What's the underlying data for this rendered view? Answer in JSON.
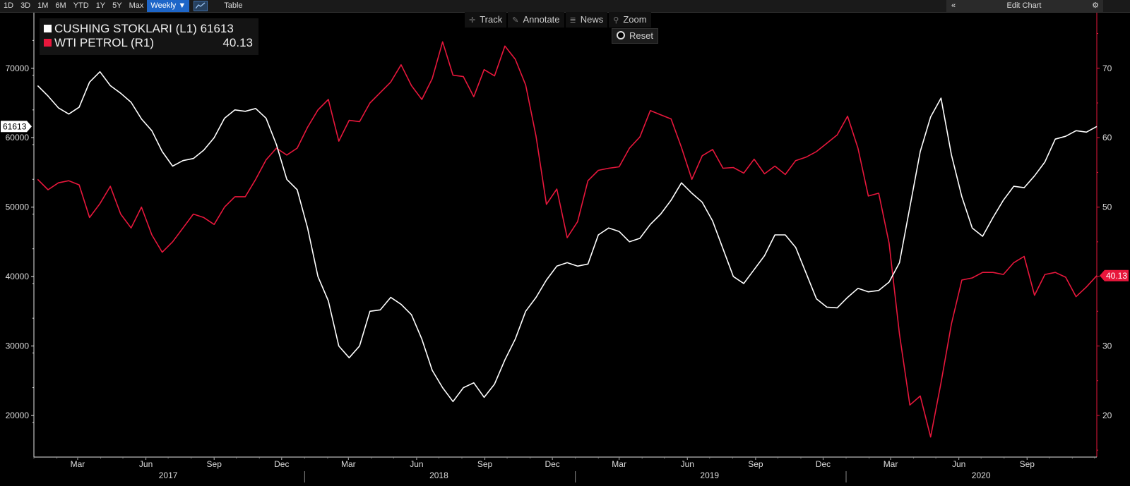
{
  "toolbar": {
    "ranges": [
      "1D",
      "3D",
      "1M",
      "6M",
      "YTD",
      "1Y",
      "5Y",
      "Max"
    ],
    "frequency": "Weekly ▼",
    "table_label": "Table",
    "collapse_glyph": "«",
    "edit_chart": "Edit Chart",
    "settings_glyph": "⚙"
  },
  "tools": {
    "track": "Track",
    "annotate": "Annotate",
    "news": "News",
    "zoom": "Zoom",
    "reset": "Reset"
  },
  "legend": {
    "series1_label": "CUSHING STOKLARI (L1) 61613",
    "series2_label": "WTI PETROL (R1)",
    "series2_value": "40.13"
  },
  "colors": {
    "series1": "#ffffff",
    "series2": "#e8173c",
    "background": "#000000"
  },
  "chart_data": {
    "type": "line",
    "x_range": [
      "2017-01-01",
      "2020-12-04"
    ],
    "left_axis": {
      "ylim": [
        14000,
        78000
      ],
      "ticks": [
        20000,
        30000,
        40000,
        50000,
        60000,
        70000
      ]
    },
    "right_axis": {
      "ylim": [
        14,
        78
      ],
      "ticks": [
        20,
        30,
        40,
        50,
        60,
        70
      ]
    },
    "month_ticks": [
      {
        "label": "Mar",
        "date": "2017-03-01"
      },
      {
        "label": "Jun",
        "date": "2017-06-01"
      },
      {
        "label": "Sep",
        "date": "2017-09-01"
      },
      {
        "label": "Dec",
        "date": "2017-12-01"
      },
      {
        "label": "Mar",
        "date": "2018-03-01"
      },
      {
        "label": "Jun",
        "date": "2018-06-01"
      },
      {
        "label": "Sep",
        "date": "2018-09-01"
      },
      {
        "label": "Dec",
        "date": "2018-12-01"
      },
      {
        "label": "Mar",
        "date": "2019-03-01"
      },
      {
        "label": "Jun",
        "date": "2019-06-01"
      },
      {
        "label": "Sep",
        "date": "2019-09-01"
      },
      {
        "label": "Dec",
        "date": "2019-12-01"
      },
      {
        "label": "Mar",
        "date": "2020-03-01"
      },
      {
        "label": "Jun",
        "date": "2020-06-01"
      },
      {
        "label": "Sep",
        "date": "2020-09-01"
      }
    ],
    "year_ticks": [
      {
        "label": "2017",
        "date": "2017-07-01"
      },
      {
        "label": "2018",
        "date": "2018-07-01"
      },
      {
        "label": "2019",
        "date": "2019-07-01"
      },
      {
        "label": "2020",
        "date": "2020-07-01"
      }
    ],
    "year_separators": [
      "2018-01-01",
      "2019-01-01",
      "2020-01-01"
    ],
    "last_value_tags": {
      "left": "61613",
      "right": "40.13"
    },
    "series": [
      {
        "name": "CUSHING STOKLARI (L1)",
        "axis": "left",
        "points": [
          [
            "2017-01-06",
            67500
          ],
          [
            "2017-01-20",
            66000
          ],
          [
            "2017-02-03",
            64300
          ],
          [
            "2017-02-17",
            63400
          ],
          [
            "2017-03-03",
            64400
          ],
          [
            "2017-03-17",
            68000
          ],
          [
            "2017-03-31",
            69500
          ],
          [
            "2017-04-14",
            67500
          ],
          [
            "2017-04-28",
            66400
          ],
          [
            "2017-05-12",
            65100
          ],
          [
            "2017-05-26",
            62700
          ],
          [
            "2017-06-09",
            61000
          ],
          [
            "2017-06-23",
            58000
          ],
          [
            "2017-07-07",
            55900
          ],
          [
            "2017-07-21",
            56700
          ],
          [
            "2017-08-04",
            57000
          ],
          [
            "2017-08-18",
            58200
          ],
          [
            "2017-09-01",
            60000
          ],
          [
            "2017-09-15",
            62800
          ],
          [
            "2017-09-29",
            64000
          ],
          [
            "2017-10-13",
            63800
          ],
          [
            "2017-10-27",
            64200
          ],
          [
            "2017-11-10",
            62800
          ],
          [
            "2017-11-24",
            59000
          ],
          [
            "2017-12-08",
            54000
          ],
          [
            "2017-12-22",
            52500
          ],
          [
            "2018-01-05",
            47000
          ],
          [
            "2018-01-19",
            40000
          ],
          [
            "2018-02-02",
            36500
          ],
          [
            "2018-02-16",
            30000
          ],
          [
            "2018-03-02",
            28300
          ],
          [
            "2018-03-16",
            30000
          ],
          [
            "2018-03-30",
            35000
          ],
          [
            "2018-04-13",
            35200
          ],
          [
            "2018-04-27",
            37000
          ],
          [
            "2018-05-11",
            36000
          ],
          [
            "2018-05-25",
            34500
          ],
          [
            "2018-06-08",
            31000
          ],
          [
            "2018-06-22",
            26500
          ],
          [
            "2018-07-06",
            24000
          ],
          [
            "2018-07-20",
            22000
          ],
          [
            "2018-08-03",
            24000
          ],
          [
            "2018-08-17",
            24700
          ],
          [
            "2018-08-31",
            22600
          ],
          [
            "2018-09-14",
            24500
          ],
          [
            "2018-09-28",
            28000
          ],
          [
            "2018-10-12",
            31000
          ],
          [
            "2018-10-26",
            35000
          ],
          [
            "2018-11-09",
            37000
          ],
          [
            "2018-11-23",
            39500
          ],
          [
            "2018-12-07",
            41500
          ],
          [
            "2018-12-21",
            42000
          ],
          [
            "2019-01-04",
            41500
          ],
          [
            "2019-01-18",
            41800
          ],
          [
            "2019-02-01",
            46000
          ],
          [
            "2019-02-15",
            47000
          ],
          [
            "2019-03-01",
            46500
          ],
          [
            "2019-03-15",
            45000
          ],
          [
            "2019-03-29",
            45500
          ],
          [
            "2019-04-12",
            47500
          ],
          [
            "2019-04-26",
            49000
          ],
          [
            "2019-05-10",
            51000
          ],
          [
            "2019-05-24",
            53500
          ],
          [
            "2019-06-07",
            52000
          ],
          [
            "2019-06-21",
            50700
          ],
          [
            "2019-07-05",
            48000
          ],
          [
            "2019-07-19",
            44000
          ],
          [
            "2019-08-02",
            40000
          ],
          [
            "2019-08-16",
            39000
          ],
          [
            "2019-08-30",
            41000
          ],
          [
            "2019-09-13",
            43000
          ],
          [
            "2019-09-27",
            46000
          ],
          [
            "2019-10-11",
            46000
          ],
          [
            "2019-10-25",
            44200
          ],
          [
            "2019-11-08",
            40500
          ],
          [
            "2019-11-22",
            36800
          ],
          [
            "2019-12-06",
            35600
          ],
          [
            "2019-12-20",
            35500
          ],
          [
            "2020-01-03",
            37000
          ],
          [
            "2020-01-17",
            38300
          ],
          [
            "2020-01-31",
            37800
          ],
          [
            "2020-02-14",
            38000
          ],
          [
            "2020-02-28",
            39200
          ],
          [
            "2020-03-13",
            42000
          ],
          [
            "2020-03-27",
            50000
          ],
          [
            "2020-04-10",
            58000
          ],
          [
            "2020-04-24",
            63000
          ],
          [
            "2020-05-08",
            65700
          ],
          [
            "2020-05-22",
            57500
          ],
          [
            "2020-06-05",
            51500
          ],
          [
            "2020-06-19",
            47000
          ],
          [
            "2020-07-03",
            45800
          ],
          [
            "2020-07-17",
            48500
          ],
          [
            "2020-07-31",
            51000
          ],
          [
            "2020-08-14",
            53000
          ],
          [
            "2020-08-28",
            52800
          ],
          [
            "2020-09-11",
            54500
          ],
          [
            "2020-09-25",
            56500
          ],
          [
            "2020-10-09",
            59800
          ],
          [
            "2020-10-23",
            60200
          ],
          [
            "2020-11-06",
            61000
          ],
          [
            "2020-11-20",
            60800
          ],
          [
            "2020-12-04",
            61613
          ]
        ]
      },
      {
        "name": "WTI PETROL (R1)",
        "axis": "right",
        "points": [
          [
            "2017-01-06",
            54
          ],
          [
            "2017-01-20",
            52.5
          ],
          [
            "2017-02-03",
            53.5
          ],
          [
            "2017-02-17",
            53.8
          ],
          [
            "2017-03-03",
            53.2
          ],
          [
            "2017-03-17",
            48.5
          ],
          [
            "2017-03-31",
            50.5
          ],
          [
            "2017-04-14",
            53
          ],
          [
            "2017-04-28",
            49
          ],
          [
            "2017-05-12",
            47
          ],
          [
            "2017-05-26",
            50
          ],
          [
            "2017-06-09",
            46
          ],
          [
            "2017-06-23",
            43.5
          ],
          [
            "2017-07-07",
            45
          ],
          [
            "2017-07-21",
            47
          ],
          [
            "2017-08-04",
            49
          ],
          [
            "2017-08-18",
            48.5
          ],
          [
            "2017-09-01",
            47.5
          ],
          [
            "2017-09-15",
            50
          ],
          [
            "2017-09-29",
            51.5
          ],
          [
            "2017-10-13",
            51.5
          ],
          [
            "2017-10-27",
            54
          ],
          [
            "2017-11-10",
            56.8
          ],
          [
            "2017-11-24",
            58.5
          ],
          [
            "2017-12-08",
            57.5
          ],
          [
            "2017-12-22",
            58.5
          ],
          [
            "2018-01-05",
            61.5
          ],
          [
            "2018-01-19",
            64
          ],
          [
            "2018-02-02",
            65.5
          ],
          [
            "2018-02-16",
            59.5
          ],
          [
            "2018-03-02",
            62.5
          ],
          [
            "2018-03-16",
            62.3
          ],
          [
            "2018-03-30",
            65
          ],
          [
            "2018-04-13",
            66.5
          ],
          [
            "2018-04-27",
            68
          ],
          [
            "2018-05-11",
            70.5
          ],
          [
            "2018-05-25",
            67.5
          ],
          [
            "2018-06-08",
            65.5
          ],
          [
            "2018-06-22",
            68.5
          ],
          [
            "2018-07-06",
            73.8
          ],
          [
            "2018-07-20",
            69
          ],
          [
            "2018-08-03",
            68.8
          ],
          [
            "2018-08-17",
            65.9
          ],
          [
            "2018-08-31",
            69.8
          ],
          [
            "2018-09-14",
            68.9
          ],
          [
            "2018-09-28",
            73.2
          ],
          [
            "2018-10-12",
            71.3
          ],
          [
            "2018-10-26",
            67.6
          ],
          [
            "2018-11-09",
            60.2
          ],
          [
            "2018-11-23",
            50.4
          ],
          [
            "2018-12-07",
            52.6
          ],
          [
            "2018-12-21",
            45.6
          ],
          [
            "2019-01-04",
            47.9
          ],
          [
            "2019-01-18",
            53.8
          ],
          [
            "2019-02-01",
            55.3
          ],
          [
            "2019-02-15",
            55.6
          ],
          [
            "2019-03-01",
            55.8
          ],
          [
            "2019-03-15",
            58.5
          ],
          [
            "2019-03-29",
            60.1
          ],
          [
            "2019-04-12",
            63.9
          ],
          [
            "2019-04-26",
            63.3
          ],
          [
            "2019-05-10",
            62.7
          ],
          [
            "2019-05-24",
            58.6
          ],
          [
            "2019-06-07",
            54
          ],
          [
            "2019-06-21",
            57.4
          ],
          [
            "2019-07-05",
            58.3
          ],
          [
            "2019-07-19",
            55.6
          ],
          [
            "2019-08-02",
            55.7
          ],
          [
            "2019-08-16",
            54.9
          ],
          [
            "2019-08-30",
            56.9
          ],
          [
            "2019-09-13",
            54.8
          ],
          [
            "2019-09-27",
            55.9
          ],
          [
            "2019-10-11",
            54.7
          ],
          [
            "2019-10-25",
            56.7
          ],
          [
            "2019-11-08",
            57.2
          ],
          [
            "2019-11-22",
            58
          ],
          [
            "2019-12-06",
            59.2
          ],
          [
            "2019-12-20",
            60.4
          ],
          [
            "2020-01-03",
            63.1
          ],
          [
            "2020-01-17",
            58.5
          ],
          [
            "2020-01-31",
            51.6
          ],
          [
            "2020-02-14",
            52
          ],
          [
            "2020-02-28",
            44.8
          ],
          [
            "2020-03-13",
            31.7
          ],
          [
            "2020-03-27",
            21.5
          ],
          [
            "2020-04-10",
            22.8
          ],
          [
            "2020-04-24",
            16.9
          ],
          [
            "2020-05-08",
            24.7
          ],
          [
            "2020-05-22",
            33.2
          ],
          [
            "2020-06-05",
            39.5
          ],
          [
            "2020-06-19",
            39.8
          ],
          [
            "2020-07-03",
            40.6
          ],
          [
            "2020-07-17",
            40.6
          ],
          [
            "2020-07-31",
            40.3
          ],
          [
            "2020-08-14",
            42
          ],
          [
            "2020-08-28",
            42.9
          ],
          [
            "2020-09-11",
            37.3
          ],
          [
            "2020-09-25",
            40.3
          ],
          [
            "2020-10-09",
            40.6
          ],
          [
            "2020-10-23",
            39.9
          ],
          [
            "2020-11-06",
            37.1
          ],
          [
            "2020-11-20",
            38.5
          ],
          [
            "2020-12-04",
            40.13
          ]
        ]
      }
    ]
  }
}
